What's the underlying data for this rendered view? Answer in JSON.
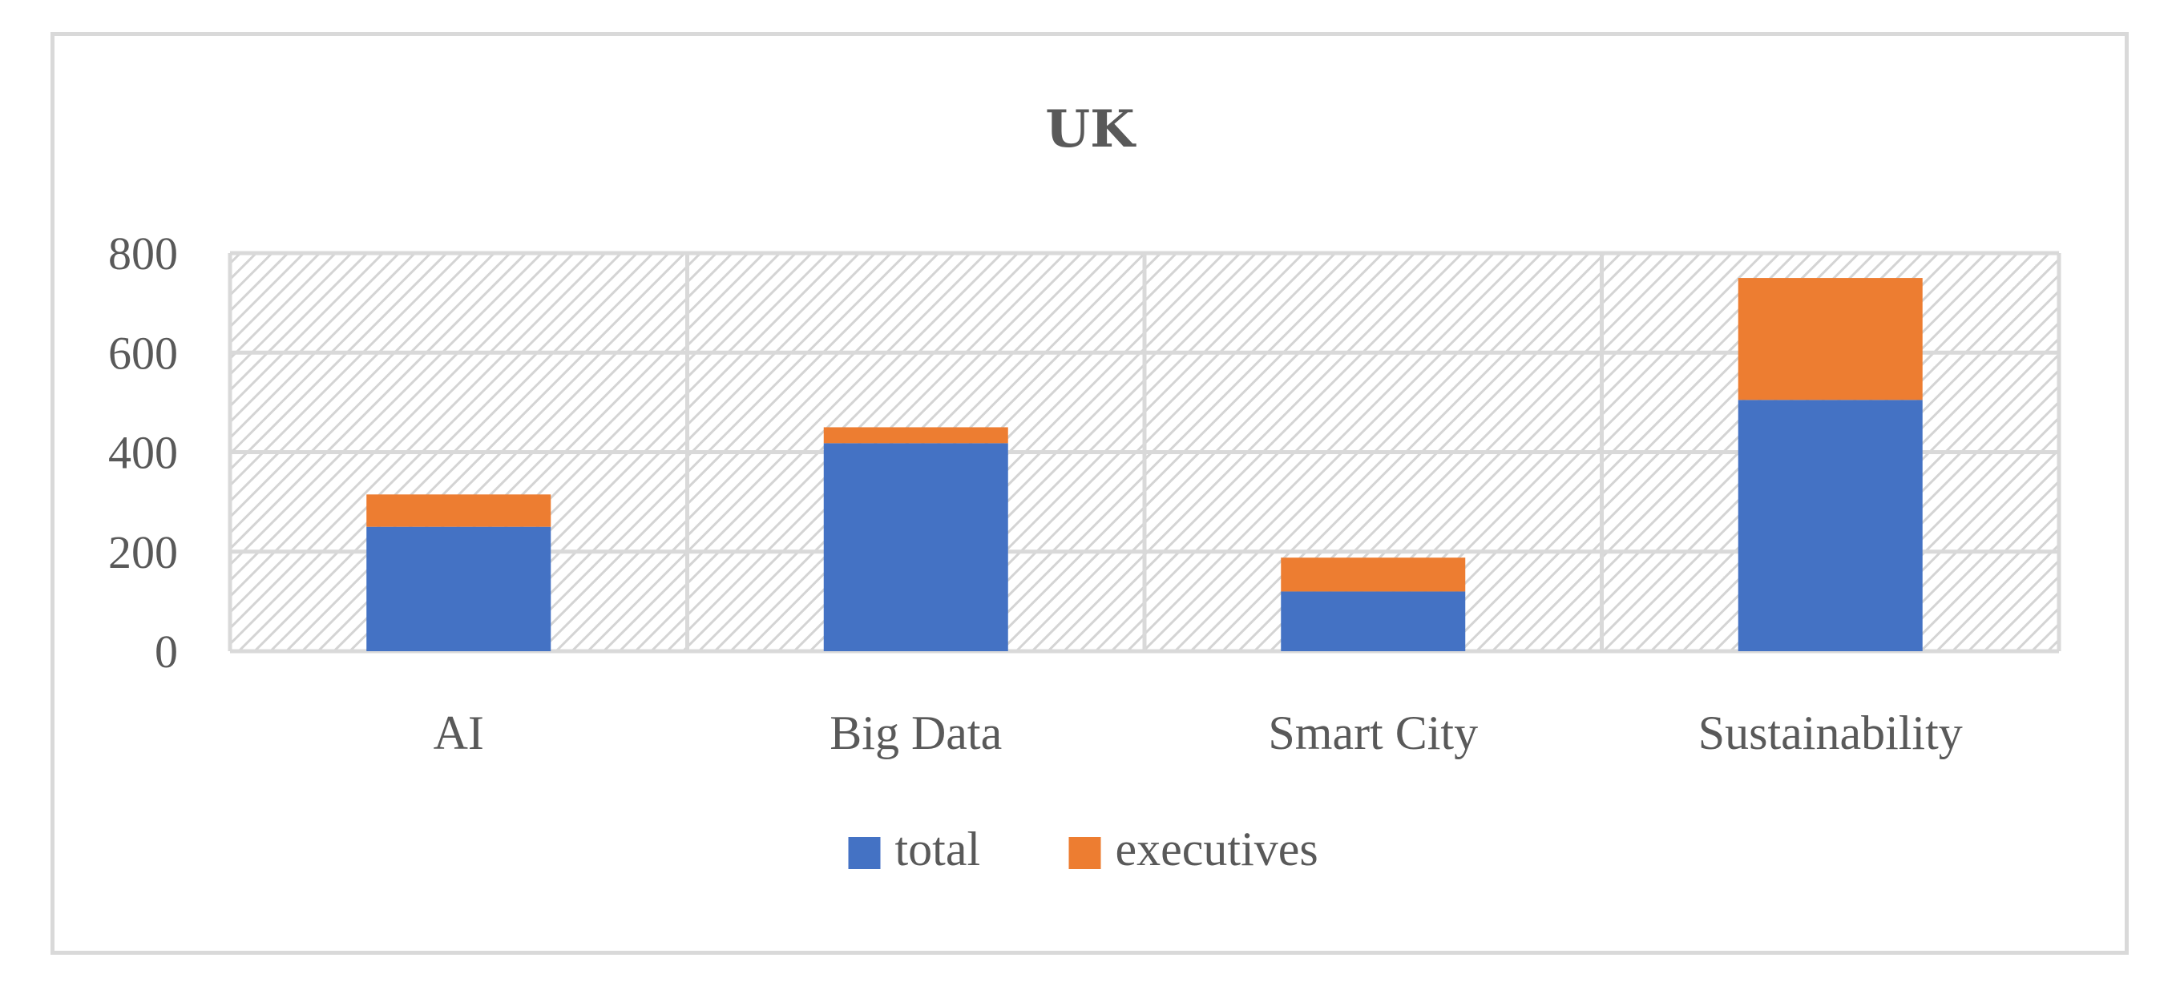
{
  "chart_data": {
    "type": "bar",
    "stacked": true,
    "title": "UK",
    "categories": [
      "AI",
      "Big Data",
      "Smart City",
      "Sustainability"
    ],
    "series": [
      {
        "name": "total",
        "color": "#4472c4",
        "values": [
          250,
          418,
          120,
          505
        ]
      },
      {
        "name": "executives",
        "color": "#ed7d31",
        "values": [
          65,
          32,
          68,
          245
        ]
      }
    ],
    "ylim": [
      0,
      800
    ],
    "yticks": [
      0,
      200,
      400,
      600,
      800
    ],
    "grid": true,
    "plot_background": "diagonal hatch",
    "legend_position": "bottom"
  }
}
